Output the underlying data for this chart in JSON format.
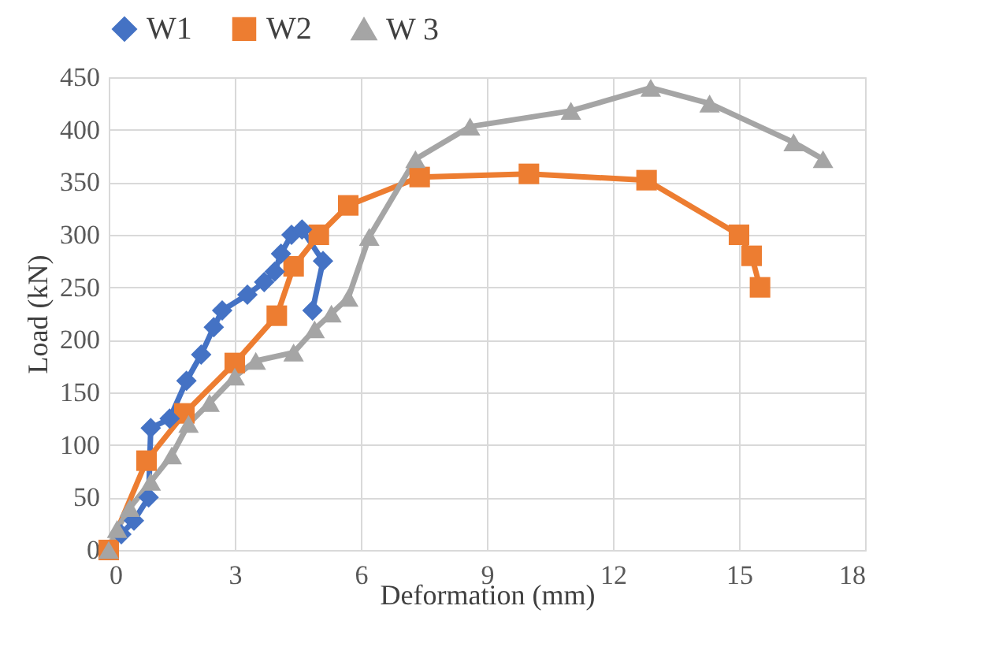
{
  "chart_data": {
    "type": "line",
    "xlabel": "Deformation (mm)",
    "ylabel": "Load (kN)",
    "xlim": [
      0,
      18
    ],
    "xticks": [
      0,
      3,
      6,
      9,
      12,
      15,
      18
    ],
    "ylim": [
      0,
      450
    ],
    "yticks": [
      0,
      50,
      100,
      150,
      200,
      250,
      300,
      350,
      400,
      450
    ],
    "grid": true,
    "legend": "top",
    "line_style": "solid",
    "series": [
      {
        "name": "W1",
        "color": "#4472c4",
        "marker": "diamond",
        "x": [
          0,
          0.3,
          0.6,
          0.95,
          1.0,
          1.45,
          1.85,
          2.2,
          2.5,
          2.7,
          3.3,
          3.7,
          3.95,
          4.1,
          4.35,
          4.6,
          5.1,
          4.85
        ],
        "values": [
          0,
          15,
          28,
          50,
          116,
          125,
          161,
          186,
          212,
          228,
          243,
          255,
          265,
          282,
          300,
          305,
          275,
          228
        ]
      },
      {
        "name": "W2",
        "color": "#ed7d31",
        "marker": "square",
        "x": [
          0,
          0.9,
          1.8,
          3.0,
          4.0,
          4.4,
          5.0,
          5.7,
          7.4,
          10,
          12.8,
          15,
          15.3,
          15.5
        ],
        "values": [
          0,
          85,
          130,
          178,
          223,
          270,
          300,
          328,
          355,
          358,
          352,
          300,
          280,
          250
        ]
      },
      {
        "name": "W 3",
        "color": "#a5a5a5",
        "marker": "triangle",
        "x": [
          0,
          0.2,
          0.5,
          1.0,
          1.5,
          1.9,
          2.4,
          3.0,
          3.5,
          4.4,
          4.9,
          5.3,
          5.7,
          6.2,
          7.3,
          8.6,
          11.0,
          12.9,
          14.3,
          16.3,
          17
        ],
        "values": [
          0,
          20,
          40,
          65,
          90,
          120,
          140,
          165,
          180,
          188,
          210,
          225,
          240,
          298,
          372,
          403,
          418,
          440,
          425,
          388,
          372
        ]
      }
    ]
  }
}
